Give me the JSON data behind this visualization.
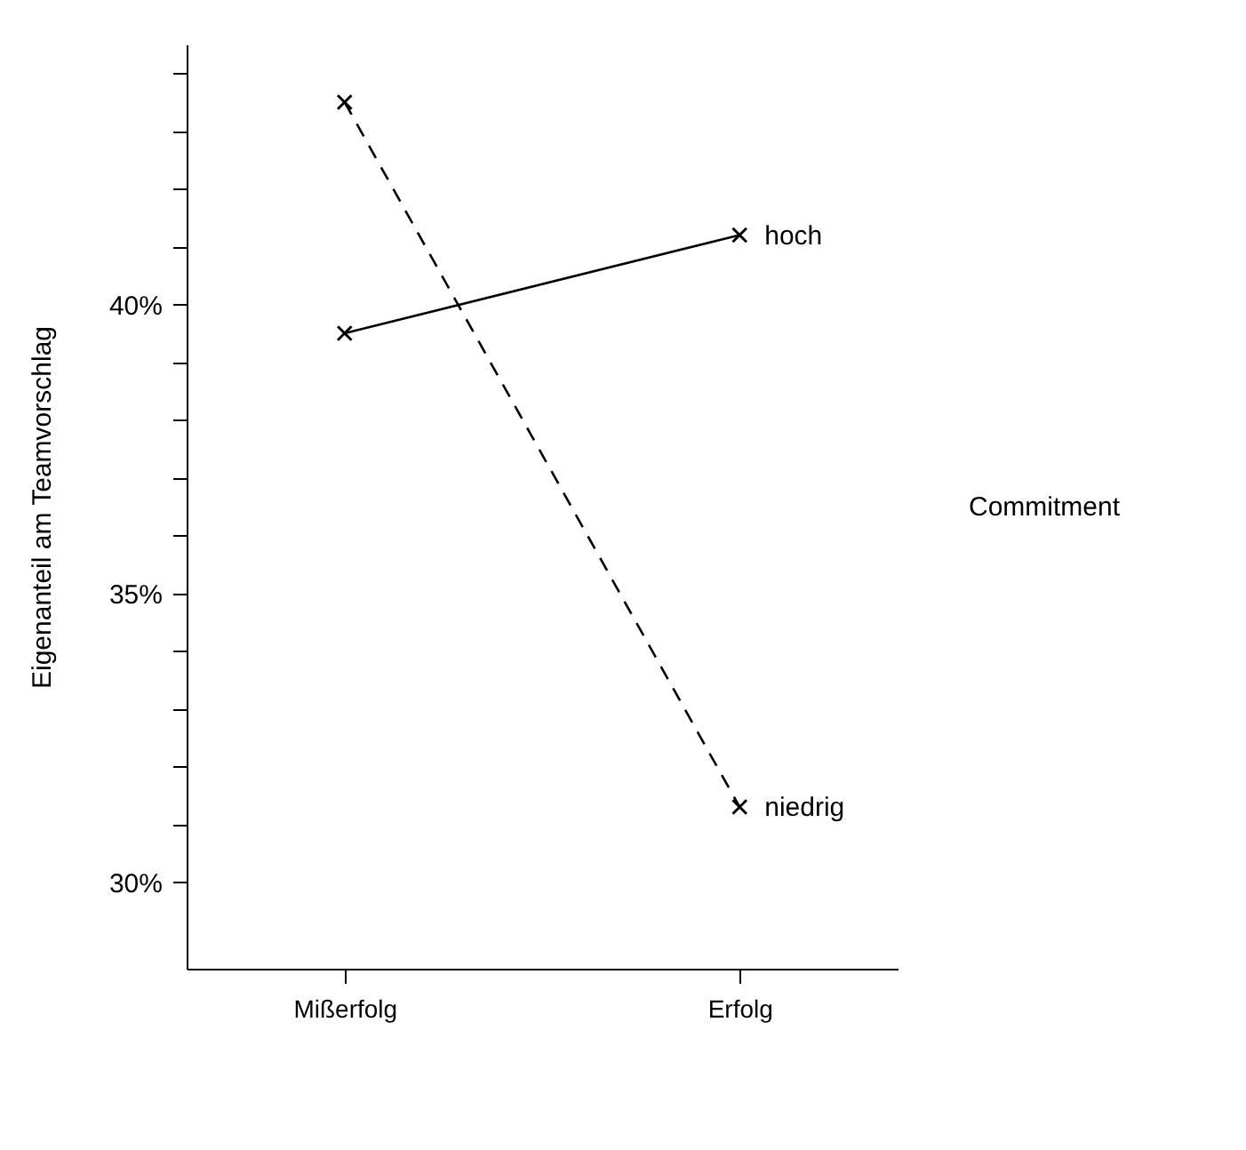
{
  "chart_data": {
    "type": "line",
    "ylabel": "Eigenanteil am Teamvorschlag",
    "legend_title": "Commitment",
    "categories": [
      "Mißerfolg",
      "Erfolg"
    ],
    "marker": "cross",
    "ylim": [
      28.5,
      44.5
    ],
    "yticks": [
      {
        "value": 30,
        "label": "30%"
      },
      {
        "value": 31,
        "label": null
      },
      {
        "value": 32,
        "label": null
      },
      {
        "value": 33,
        "label": null
      },
      {
        "value": 34,
        "label": null
      },
      {
        "value": 35,
        "label": "35%"
      },
      {
        "value": 36,
        "label": null
      },
      {
        "value": 37,
        "label": null
      },
      {
        "value": 38,
        "label": null
      },
      {
        "value": 39,
        "label": null
      },
      {
        "value": 40,
        "label": "40%"
      },
      {
        "value": 41,
        "label": null
      },
      {
        "value": 42,
        "label": null
      },
      {
        "value": 43,
        "label": null
      },
      {
        "value": 44,
        "label": null
      }
    ],
    "series": [
      {
        "name": "hoch",
        "color": "#000000",
        "line_style": "solid",
        "values": [
          39.5,
          41.2
        ]
      },
      {
        "name": "niedrig",
        "color": "#000000",
        "line_style": "dashed",
        "values": [
          43.5,
          31.3
        ]
      }
    ]
  }
}
